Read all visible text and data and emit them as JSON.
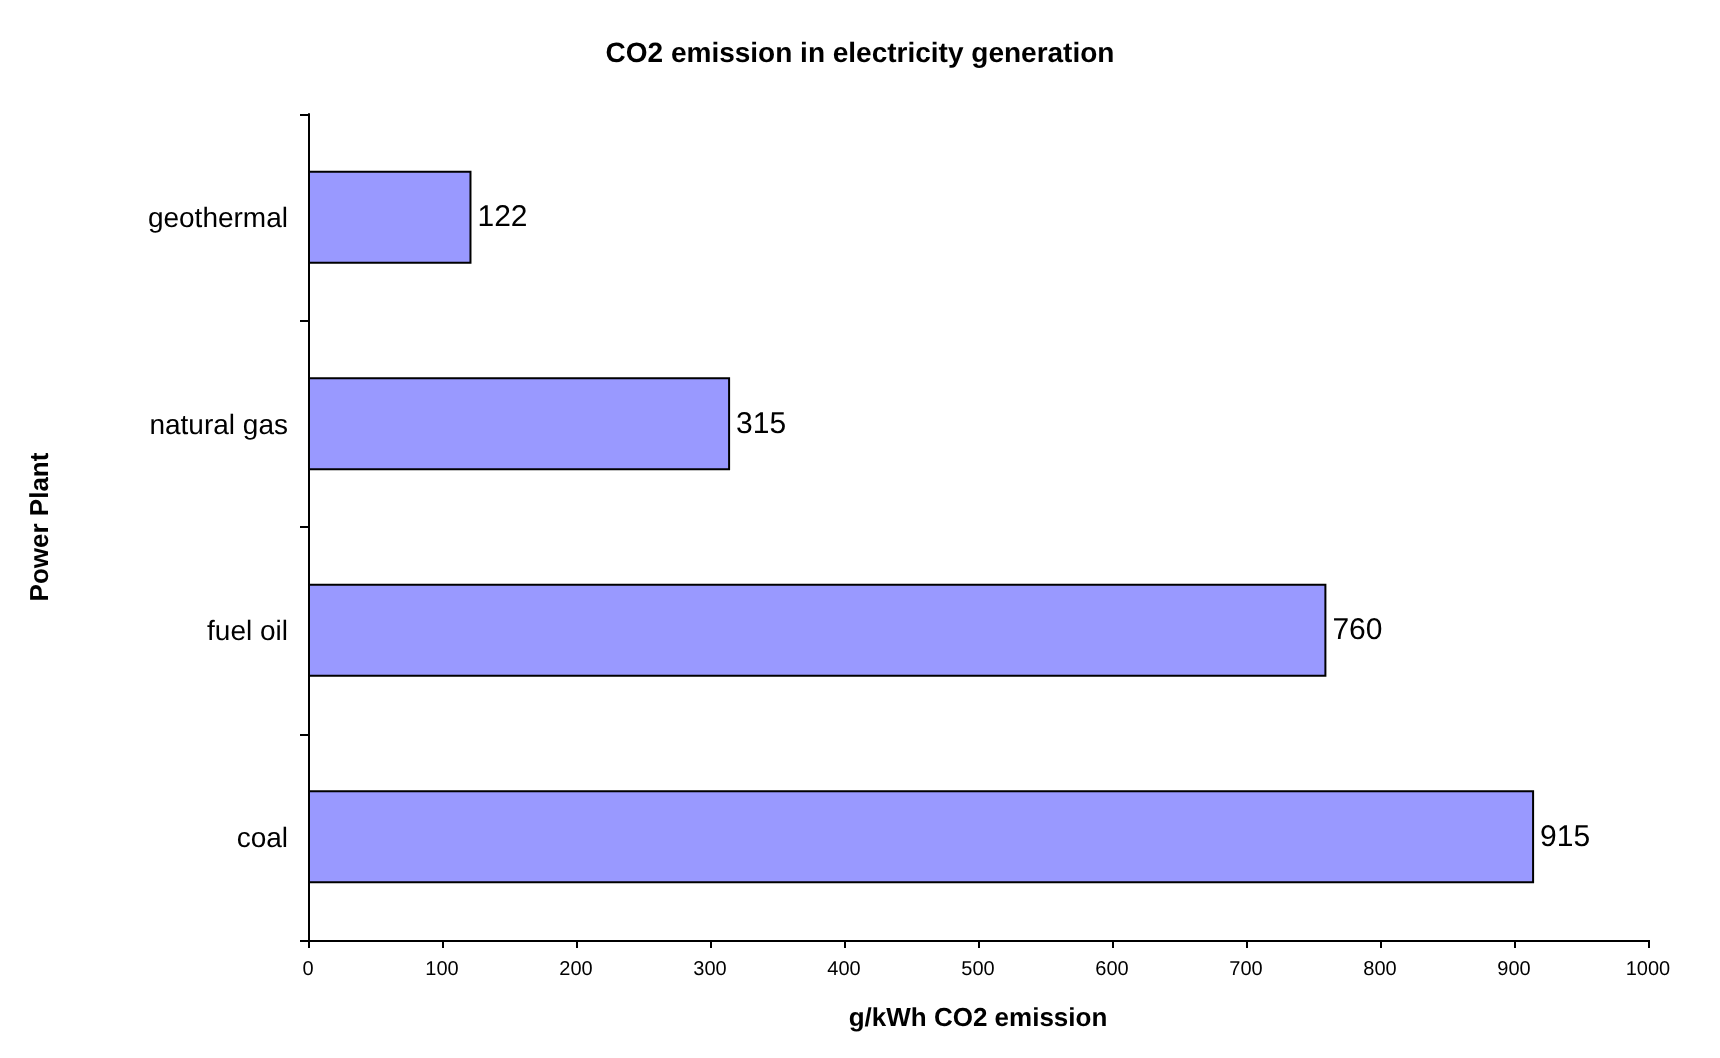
{
  "chart_data": {
    "type": "bar",
    "orientation": "horizontal",
    "title": "CO2 emission in electricity generation",
    "xlabel": "g/kWh CO2 emission",
    "ylabel": "Power Plant",
    "categories": [
      "geothermal",
      "natural gas",
      "fuel oil",
      "coal"
    ],
    "values": [
      122,
      315,
      760,
      915
    ],
    "color": "#9999ff",
    "data_labels": true,
    "xlim": [
      0,
      1000
    ],
    "xticks": [
      0,
      100,
      200,
      300,
      400,
      500,
      600,
      700,
      800,
      900,
      1000
    ],
    "grid": false
  }
}
